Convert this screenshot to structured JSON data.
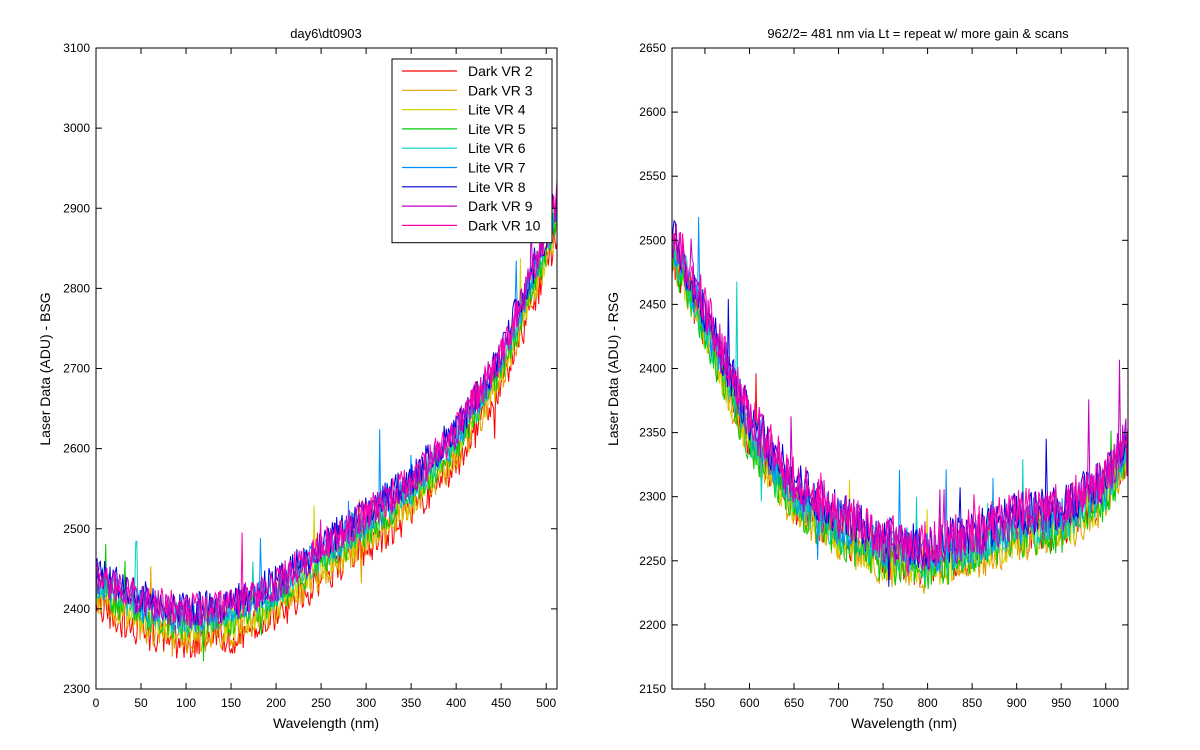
{
  "figure": {
    "background": "#ffffff",
    "panel_count": 2
  },
  "chart_data": [
    {
      "type": "line",
      "title": "day6\\dt0903",
      "xlabel": "Wavelength (nm)",
      "ylabel": "Laser Data (ADU) - BSG",
      "xlim": [
        0,
        512
      ],
      "ylim": [
        2300,
        3100
      ],
      "xticks": [
        0,
        50,
        100,
        150,
        200,
        250,
        300,
        350,
        400,
        450,
        500
      ],
      "yticks": [
        2300,
        2400,
        2500,
        2600,
        2700,
        2800,
        2900,
        3000,
        3100
      ],
      "grid": false,
      "legend_position": "top-right",
      "noise_note_hidden": true,
      "baseline_points": {
        "x": [
          0,
          50,
          100,
          150,
          200,
          250,
          300,
          350,
          400,
          450,
          500,
          512
        ],
        "y": [
          2430,
          2400,
          2385,
          2392,
          2420,
          2465,
          2505,
          2548,
          2610,
          2705,
          2855,
          2900
        ]
      },
      "noise_amplitude": 22,
      "series": [
        {
          "name": "Dark VR 2",
          "color": "#ff0000",
          "offset": -28
        },
        {
          "name": "Dark VR 3",
          "color": "#e6a000",
          "offset": -20
        },
        {
          "name": "Lite VR 4",
          "color": "#d4d400",
          "offset": -12
        },
        {
          "name": "Lite VR 5",
          "color": "#00cc00",
          "offset": -6
        },
        {
          "name": "Lite VR 6",
          "color": "#00d0c0",
          "offset": 2
        },
        {
          "name": "Lite VR 7",
          "color": "#0090ff",
          "offset": 6
        },
        {
          "name": "Lite VR 8",
          "color": "#0000dd",
          "offset": 14
        },
        {
          "name": "Dark VR 9",
          "color": "#c000c0",
          "offset": 10
        },
        {
          "name": "Dark VR 10",
          "color": "#ff00aa",
          "offset": 12
        }
      ]
    },
    {
      "type": "line",
      "title": "962/2= 481 nm via Lt = repeat w/ more gain & scans",
      "xlabel": "Wavelength (nm)",
      "ylabel": "Laser Data (ADU) - RSG",
      "xlim": [
        513,
        1025
      ],
      "ylim": [
        2150,
        2650
      ],
      "xticks": [
        550,
        600,
        650,
        700,
        750,
        800,
        850,
        900,
        950,
        1000
      ],
      "yticks": [
        2150,
        2200,
        2250,
        2300,
        2350,
        2400,
        2450,
        2500,
        2550,
        2600,
        2650
      ],
      "grid": false,
      "baseline_points": {
        "x": [
          513,
          550,
          600,
          650,
          700,
          750,
          800,
          850,
          900,
          950,
          1000,
          1025
        ],
        "y": [
          2500,
          2440,
          2355,
          2305,
          2280,
          2262,
          2255,
          2265,
          2280,
          2285,
          2310,
          2345
        ]
      },
      "noise_amplitude": 18,
      "series": [
        {
          "name": "Dark VR 2",
          "color": "#ff0000",
          "offset": -8
        },
        {
          "name": "Dark VR 3",
          "color": "#e6a000",
          "offset": -14
        },
        {
          "name": "Lite VR 4",
          "color": "#d4d400",
          "offset": -10
        },
        {
          "name": "Lite VR 5",
          "color": "#00cc00",
          "offset": -12
        },
        {
          "name": "Lite VR 6",
          "color": "#00d0c0",
          "offset": -4
        },
        {
          "name": "Lite VR 7",
          "color": "#0090ff",
          "offset": 0
        },
        {
          "name": "Lite VR 8",
          "color": "#0000dd",
          "offset": 6
        },
        {
          "name": "Dark VR 9",
          "color": "#c000c0",
          "offset": 4
        },
        {
          "name": "Dark VR 10",
          "color": "#ff00aa",
          "offset": 8
        }
      ]
    }
  ]
}
